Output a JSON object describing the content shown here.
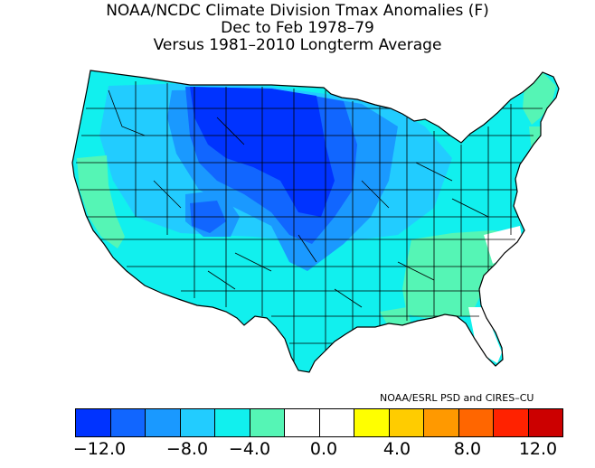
{
  "title": {
    "line1": "NOAA/NCDC Climate Division Tmax Anomalies (F)",
    "line2": "Dec to Feb 1978–79",
    "line3": "Versus 1981–2010 Longterm Average"
  },
  "credit": "NOAA/ESRL PSD and CIRES–CU",
  "legend": {
    "colors": [
      "#0033ff",
      "#1166ff",
      "#1a99ff",
      "#22ccff",
      "#11f0ee",
      "#55f5b5",
      "#ffffff",
      "#ffffff",
      "#ffff00",
      "#ffcc00",
      "#ff9900",
      "#ff6600",
      "#ff2200",
      "#cc0000"
    ],
    "ticks": [
      "−12.0",
      "−8.0",
      "−4.0",
      "0.0",
      "4.0",
      "8.0",
      "12.0"
    ]
  },
  "region_colors": {
    "deep_blue": "#0033ff",
    "blue": "#1166ff",
    "mid_blue": "#1a99ff",
    "light_blue": "#22ccff",
    "cyan": "#11f0ee",
    "aqua_green": "#55f5b5",
    "white": "#ffffff"
  }
}
